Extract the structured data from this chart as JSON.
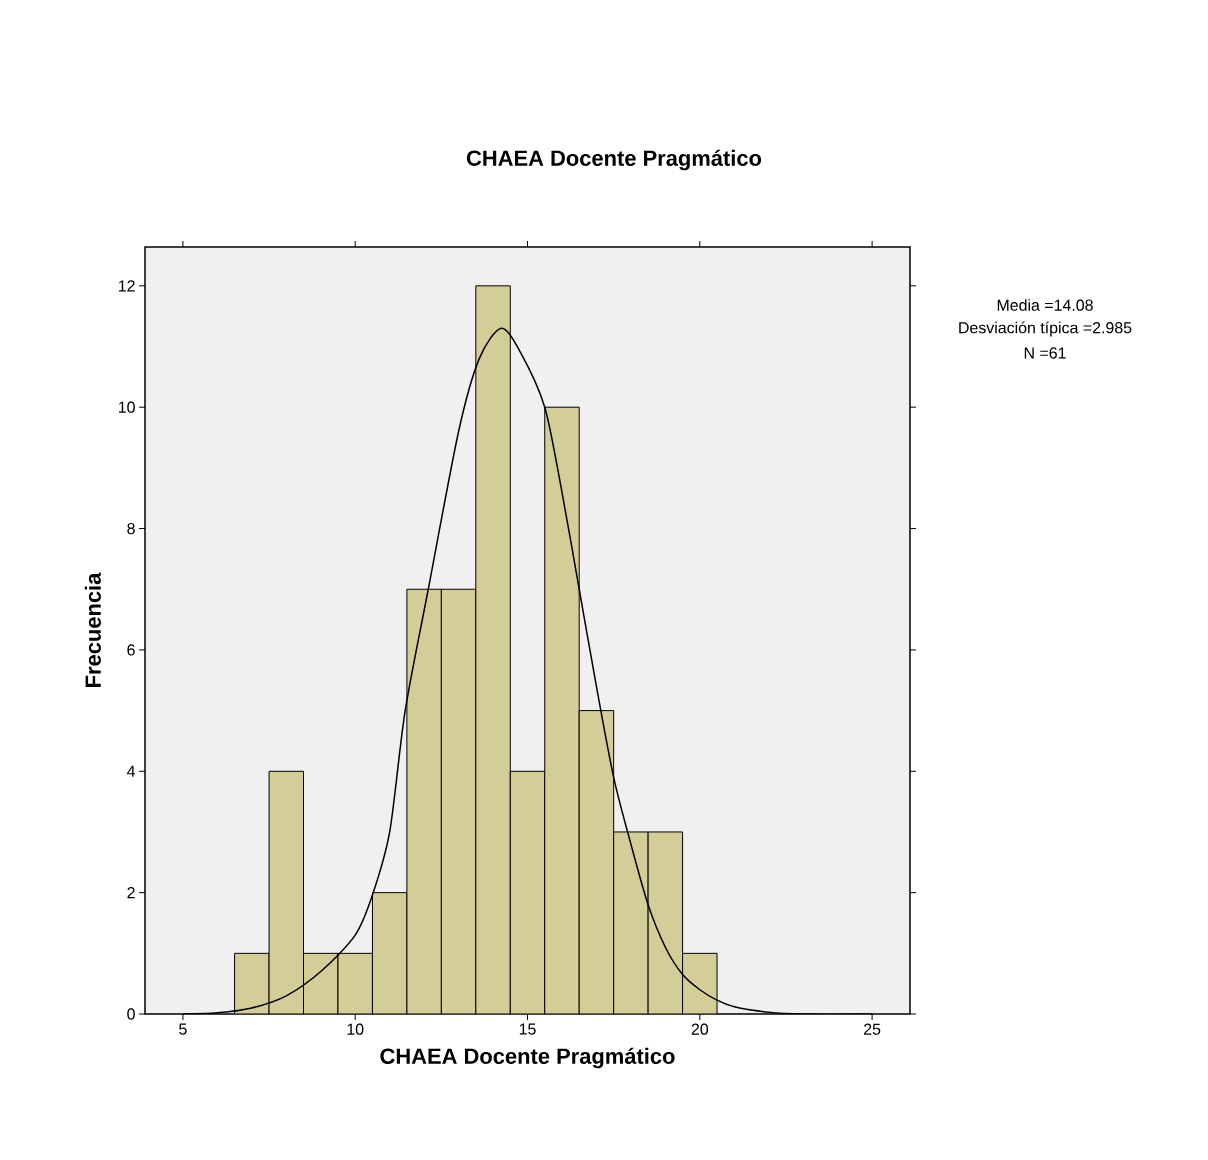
{
  "chart_data": {
    "type": "histogram",
    "title": "CHAEA Docente Pragmático",
    "xlabel": "CHAEA Docente Pragmático",
    "ylabel": "Frecuencia",
    "bins": [
      6.5,
      7.5,
      8.5,
      9.5,
      10.5,
      11.5,
      12.5,
      13.5,
      14.5,
      15.5,
      16.5,
      17.5,
      18.5,
      19.5,
      20.5
    ],
    "values": [
      1,
      4,
      1,
      1,
      2,
      7,
      7,
      12,
      4,
      10,
      5,
      3,
      3,
      1
    ],
    "color": "#d3ce97",
    "xlim": [
      3.9,
      26.1
    ],
    "ylim": [
      0,
      12.64
    ],
    "xticks": [
      5,
      10,
      15,
      20,
      25
    ],
    "yticks": [
      0,
      2,
      4,
      6,
      8,
      10,
      12
    ],
    "annotations": [
      "Media =14.08",
      "Desviación típica =2.985",
      "N =61"
    ],
    "series": [
      {
        "type": "line",
        "color": "#000000",
        "x": [
          5,
          6,
          7,
          8,
          9,
          10,
          10.5,
          11,
          11.45,
          12.12,
          13,
          13.6,
          14.24,
          14.8,
          15.5,
          16,
          16.5,
          17,
          17.5,
          18,
          18.5,
          19,
          19.5,
          20,
          20.5,
          21,
          22,
          23,
          25
        ],
        "values": [
          0,
          0.02,
          0.1,
          0.3,
          0.7,
          1.3,
          1.96,
          3.0,
          5.0,
          7.0,
          9.6,
          10.8,
          11.3,
          10.9,
          10.0,
          8.6,
          7.0,
          5.4,
          3.9,
          2.8,
          1.8,
          1.1,
          0.65,
          0.4,
          0.23,
          0.12,
          0.03,
          0,
          0
        ]
      }
    ]
  }
}
